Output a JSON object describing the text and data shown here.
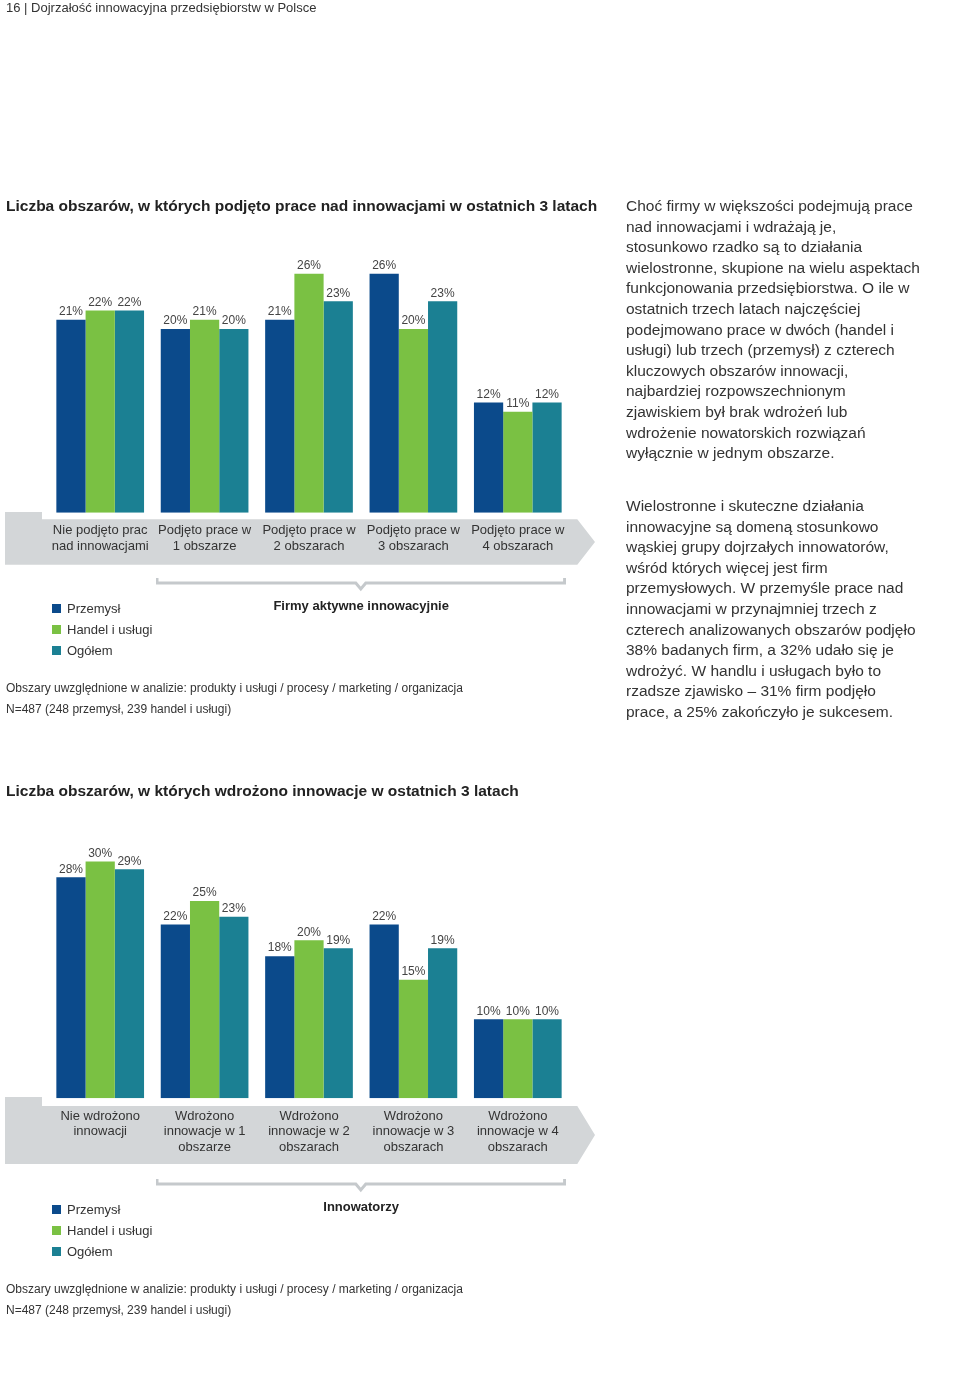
{
  "chart_data": [
    {
      "type": "bar",
      "title": "Liczba obszarów, w których podjęto prace nad innowacjami w ostatnich 3 latach",
      "categories": [
        "Nie podjęto prac nad innowacjami",
        "Podjęto prace w 1 obszarze",
        "Podjęto prace w 2 obszarach",
        "Podjęto prace w 3 obszarach",
        "Podjęto prace w 4 obszarach"
      ],
      "series": [
        {
          "name": "Przemysł",
          "color": "#0b4a8b",
          "values": [
            21,
            20,
            21,
            26,
            12
          ],
          "value_labels": [
            "21%",
            "20%",
            "21%",
            "26%",
            "12%"
          ]
        },
        {
          "name": "Handel i usługi",
          "color": "#7ac143",
          "values": [
            22,
            21,
            26,
            20,
            11
          ],
          "value_labels": [
            "22%",
            "21%",
            "26%",
            "20%",
            "11%"
          ]
        },
        {
          "name": "Ogółem",
          "color": "#1b8093",
          "values": [
            22,
            20,
            23,
            23,
            12
          ],
          "value_labels": [
            "22%",
            "20%",
            "23%",
            "23%",
            "12%"
          ]
        }
      ],
      "legend": "bottom left",
      "annotations": [
        "Firmy aktywne innowacyjnie",
        "Obszary uwzględnione w analizie: produkty i usługi / procesy / marketing / organizacja",
        "N=487 (248 przemysł, 239 handel i usługi)"
      ]
    },
    {
      "type": "other",
      "annotations": [
        "16 | Dojrzałość innowacyjna przedsiębiorstw w Polsce",
        "Choć firmy w większości podejmują prace nad innowacjami i wdrażają je, stosunkowo rzadko są to działania wielostronne, skupione na wielu aspektach funkcjonowania przedsiębiorstwa. O ile w ostatnich trzech latach najczęściej podejmowano prace w dwóch (handel i usługi) lub trzech (przemysł) z czterech kluczowych obszarów innowacji, najbardziej rozpowszechnionym zjawiskiem był brak wdrożeń lub wdrożenie nowatorskich rozwiązań wyłącznie w jednym obszarze.",
        "Wielostronne i skuteczne działania innowacyjne są domeną stosunkowo wąskiej grupy dojrzałych innowatorów, wśród których więcej jest firm przemysłowych. W przemyśle prace nad innowacjami w przynajmniej trzech z czterech analizowanych obszarów podjęło 38% badanych firm, a 32% udało się je wdrożyć. W handlu i usługach było to rzadsze zjawisko – 31% firm podjęło prace, a 25% zakończyło je sukcesem."
      ]
    },
    {
      "type": "bar",
      "title": "Liczba obszarów, w których wdrożono innowacje w ostatnich 3 latach",
      "categories": [
        "Nie wdrożono innowacji",
        "Wdrożono innowacje w 1 obszarze",
        "Wdrożono innowacje w 2 obszarach",
        "Wdrożono innowacje w 3 obszarach",
        "Wdrożono innowacje w 4 obszarach"
      ],
      "series": [
        {
          "name": "Przemysł",
          "color": "#0b4a8b",
          "values": [
            28,
            22,
            18,
            22,
            10
          ],
          "value_labels": [
            "28%",
            "22%",
            "18%",
            "22%",
            "10%"
          ]
        },
        {
          "name": "Handel i usługi",
          "color": "#7ac143",
          "values": [
            30,
            25,
            20,
            15,
            10
          ],
          "value_labels": [
            "30%",
            "25%",
            "20%",
            "15%",
            "10%"
          ]
        },
        {
          "name": "Ogółem",
          "color": "#1b8093",
          "values": [
            29,
            23,
            19,
            19,
            10
          ],
          "value_labels": [
            "29%",
            "23%",
            "19%",
            "19%",
            "10%"
          ]
        }
      ],
      "legend": "bottom left",
      "annotations": [
        "Innowatorzy",
        "Obszary uwzględnione w analizie: produkty i usługi / procesy / marketing / organizacja",
        "N=487 (248 przemysł, 239 handel i usługi)"
      ]
    }
  ]
}
